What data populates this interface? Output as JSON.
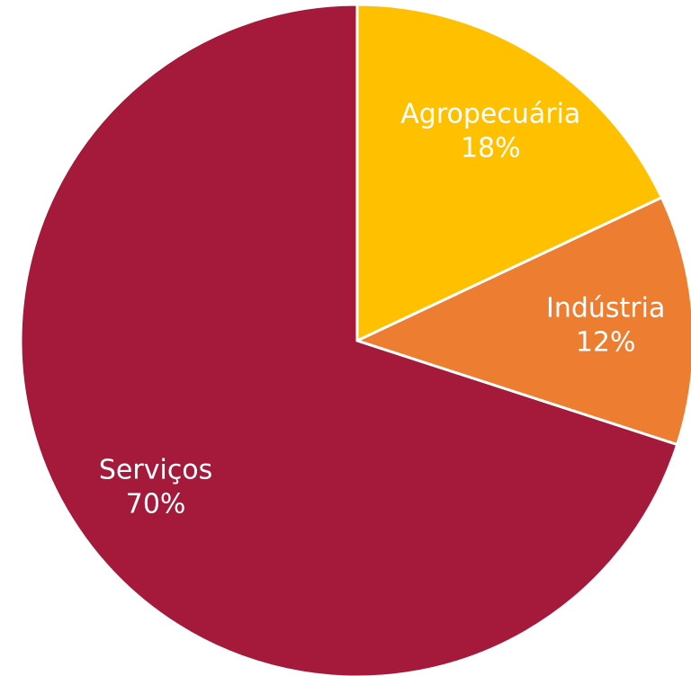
{
  "chart_data": {
    "type": "pie",
    "categories": [
      "Agropecuária",
      "Indústria",
      "Serviços"
    ],
    "values": [
      18,
      12,
      70
    ],
    "value_labels": [
      "18%",
      "12%",
      "70%"
    ],
    "colors": [
      "#FFC000",
      "#ED7D31",
      "#A5193B"
    ],
    "start_angle": "12 o'clock",
    "direction": "clockwise",
    "legend": "none",
    "title": ""
  }
}
